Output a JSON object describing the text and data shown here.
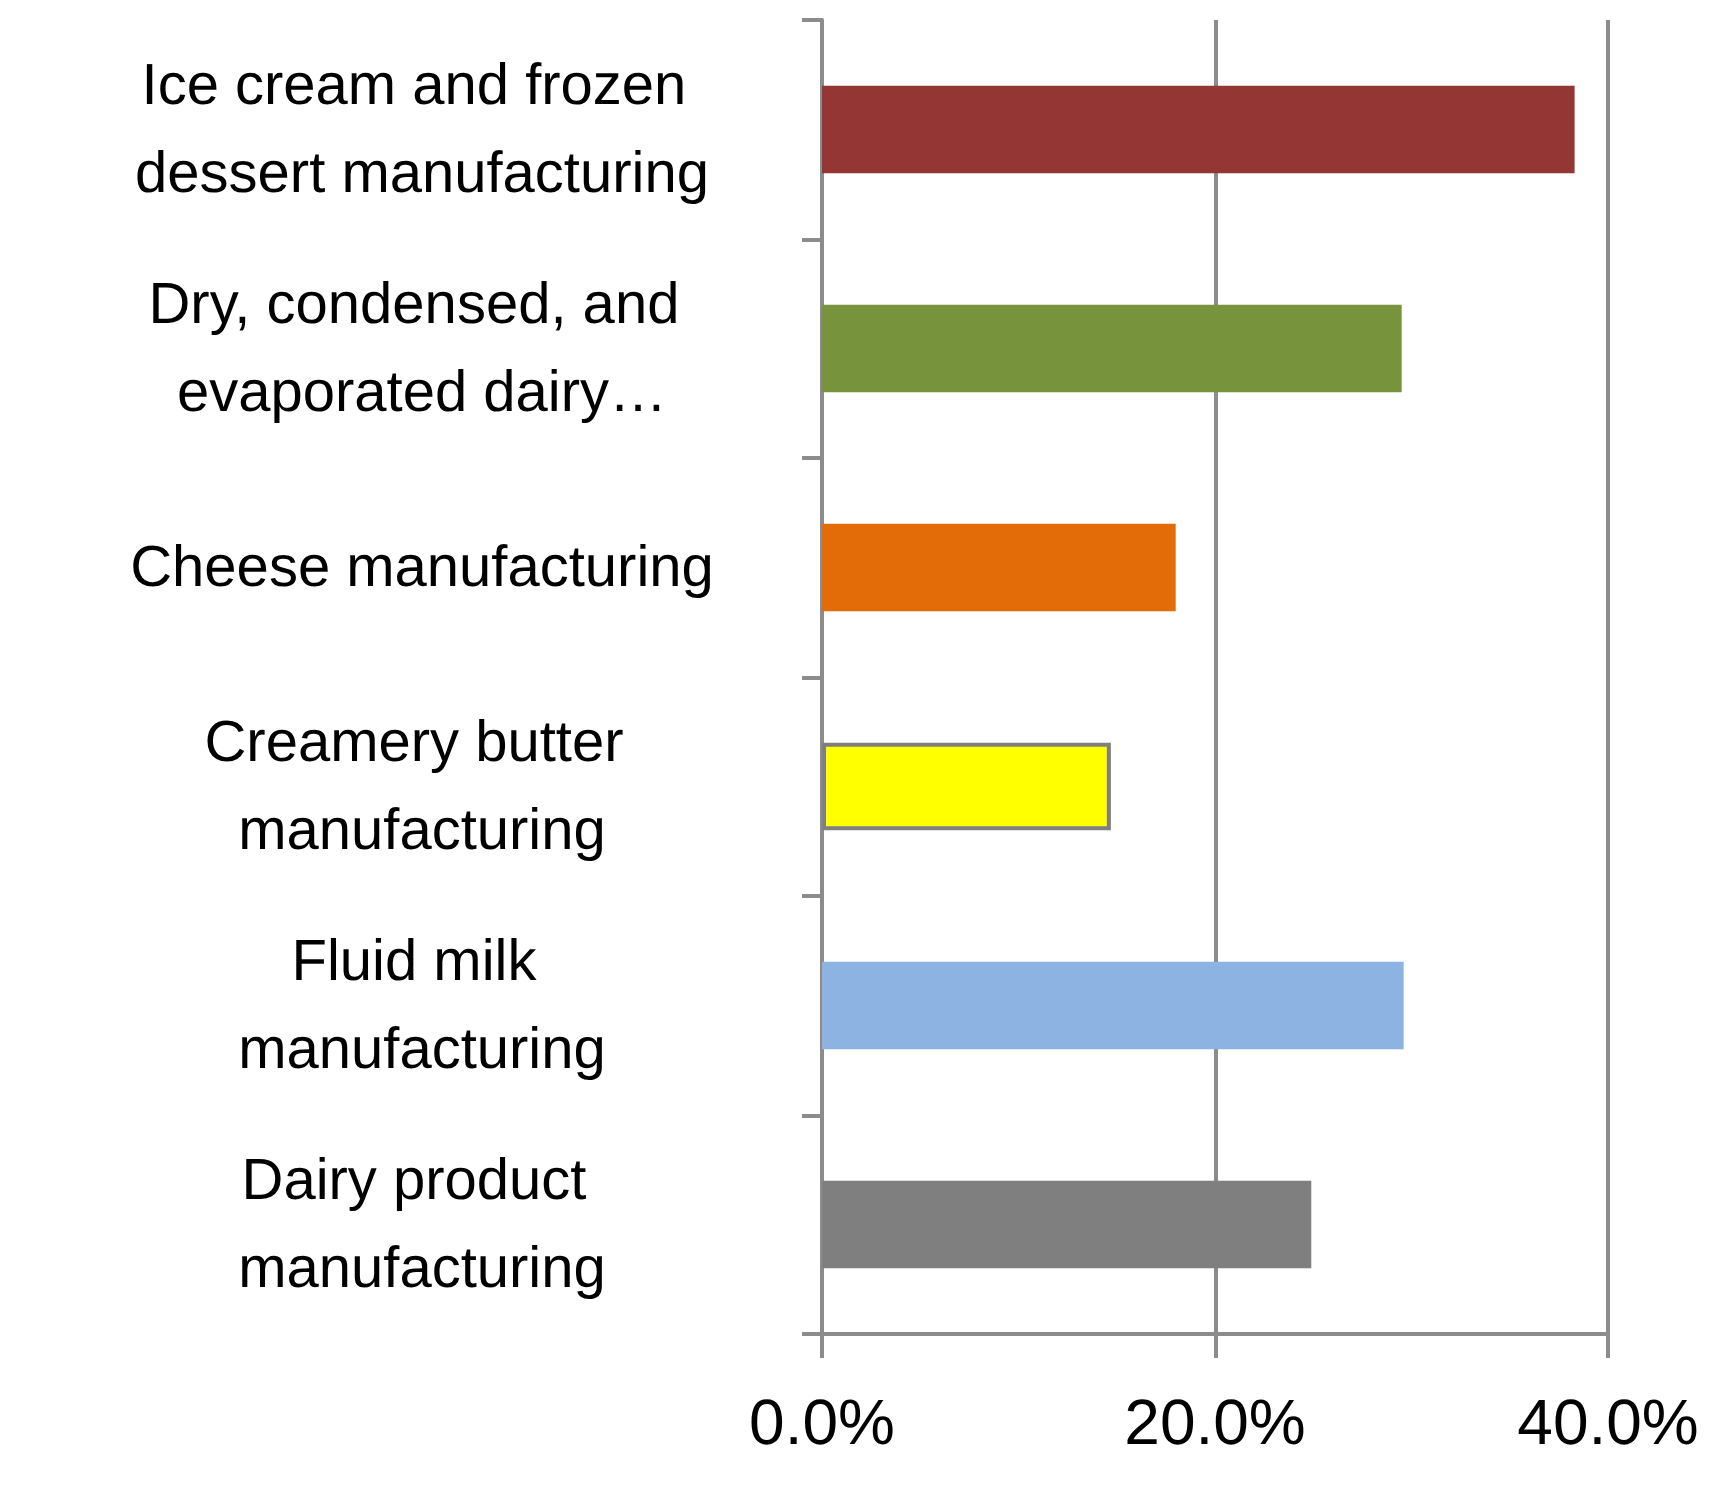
{
  "chart_data": {
    "type": "bar",
    "orientation": "horizontal",
    "categories": [
      "Ice cream and frozen dessert manufacturing",
      "Dry, condensed, and evaporated dairy…",
      "Cheese manufacturing",
      "Creamery butter manufacturing",
      "Fluid milk manufacturing",
      "Dairy product manufacturing"
    ],
    "values": [
      38.3,
      29.5,
      18.0,
      14.7,
      29.6,
      24.9
    ],
    "colors": [
      "#943634",
      "#77933c",
      "#e36c09",
      "#ffff00",
      "#8db3e2",
      "#7f7f7f"
    ],
    "xlim": [
      0,
      40
    ],
    "xticks": [
      {
        "value": 0,
        "label": "0.0%"
      },
      {
        "value": 20,
        "label": "20.0%"
      },
      {
        "value": 40,
        "label": "40.0%"
      }
    ],
    "grid": "x"
  }
}
